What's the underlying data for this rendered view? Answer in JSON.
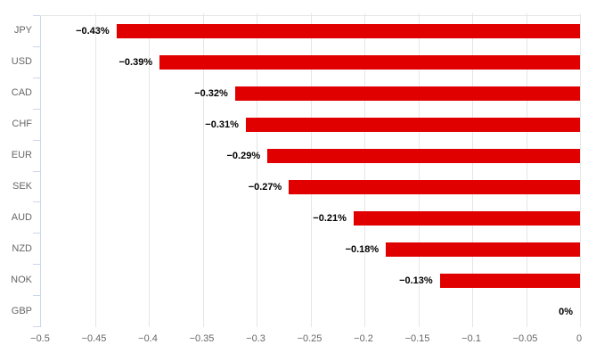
{
  "chart_data": {
    "type": "bar",
    "orientation": "horizontal",
    "title": "",
    "xlabel": "",
    "ylabel": "",
    "legend": false,
    "grid": true,
    "xlim": [
      -0.5,
      0
    ],
    "categories": [
      "JPY",
      "USD",
      "CAD",
      "CHF",
      "EUR",
      "SEK",
      "AUD",
      "NZD",
      "NOK",
      "GBP"
    ],
    "values": [
      -0.43,
      -0.39,
      -0.32,
      -0.31,
      -0.29,
      -0.27,
      -0.21,
      -0.18,
      -0.13,
      0
    ],
    "data_labels": [
      "−0.43%",
      "−0.39%",
      "−0.32%",
      "−0.31%",
      "−0.29%",
      "−0.27%",
      "−0.21%",
      "−0.18%",
      "−0.13%",
      "0%"
    ],
    "x_tick_labels": [
      "−0.5",
      "−0.45",
      "−0.4",
      "−0.35",
      "−0.3",
      "−0.25",
      "−0.2",
      "−0.15",
      "−0.1",
      "−0.05",
      "0"
    ],
    "x_tick_values": [
      -0.5,
      -0.45,
      -0.4,
      -0.35,
      -0.3,
      -0.25,
      -0.2,
      -0.15,
      -0.1,
      -0.05,
      0
    ],
    "colors": {
      "bar": "#e00000",
      "gridline": "#e6e6e6",
      "axis_line": "#ccd6eb",
      "axis_text": "#666666",
      "data_label_text": "#000000",
      "background": "#ffffff"
    }
  }
}
